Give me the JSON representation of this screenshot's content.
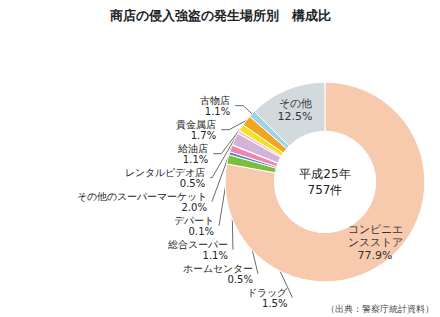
{
  "chart_data": {
    "type": "pie",
    "title": "商店の侵入強盗の発生場所別　構成比",
    "center_text": [
      "平成25年",
      "757件"
    ],
    "source": "（出典：警察庁統計資料）",
    "categories": [
      "コンビニエンスストア",
      "ドラッグ",
      "ホームセンター",
      "総合スーパー",
      "デパート",
      "その他のスーパーマーケット",
      "レンタルビデオ店",
      "給油店",
      "貴金属店",
      "古物店",
      "その他"
    ],
    "values": [
      77.9,
      1.5,
      0.5,
      1.1,
      0.1,
      2.0,
      0.5,
      1.1,
      1.7,
      1.1,
      12.5
    ],
    "value_labels": [
      "77.9%",
      "1.5%",
      "0.5%",
      "1.1%",
      "0.1%",
      "2.0%",
      "0.5%",
      "1.1%",
      "1.7%",
      "1.1%",
      "12.5%"
    ],
    "colors": [
      "#f7c9ad",
      "#7cbd3c",
      "#4f7fc6",
      "#ee86ad",
      "#e23b3b",
      "#d4b3d8",
      "#f6c6d6",
      "#f3e11f",
      "#f2a51e",
      "#9fd3e8",
      "#d3dadd"
    ],
    "data_labels": true
  }
}
